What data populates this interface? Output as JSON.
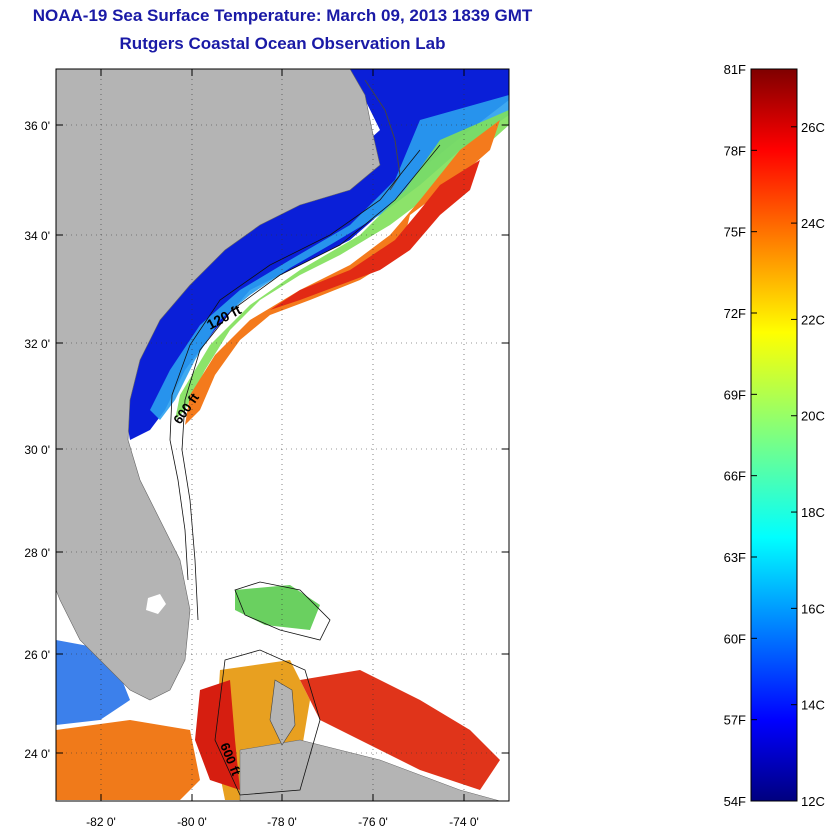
{
  "title": "NOAA-19 Sea Surface Temperature:  March 09, 2013 1839 GMT",
  "subtitle": "Rutgers Coastal Ocean Observation Lab",
  "map": {
    "lon_range": [
      -83,
      -73
    ],
    "lat_range": [
      23,
      37
    ],
    "lon_ticks": [
      "-82 0'",
      "-80 0'",
      "-78 0'",
      "-76 0'",
      "-74 0'"
    ],
    "lat_ticks": [
      "36 0'",
      "34 0'",
      "32 0'",
      "30 0'",
      "28 0'",
      "26 0'",
      "24 0'"
    ],
    "isobath_labels": [
      "120 ft",
      "600 ft",
      "600 ft"
    ],
    "land_color": "#b4b4b4"
  },
  "colorbar": {
    "fahrenheit_ticks": [
      "81F",
      "78F",
      "75F",
      "72F",
      "69F",
      "66F",
      "63F",
      "60F",
      "57F",
      "54F"
    ],
    "celsius_ticks": [
      "26C",
      "24C",
      "22C",
      "20C",
      "18C",
      "16C",
      "14C",
      "12C"
    ],
    "range_c": [
      12,
      27.2
    ],
    "colormap": "jet"
  }
}
